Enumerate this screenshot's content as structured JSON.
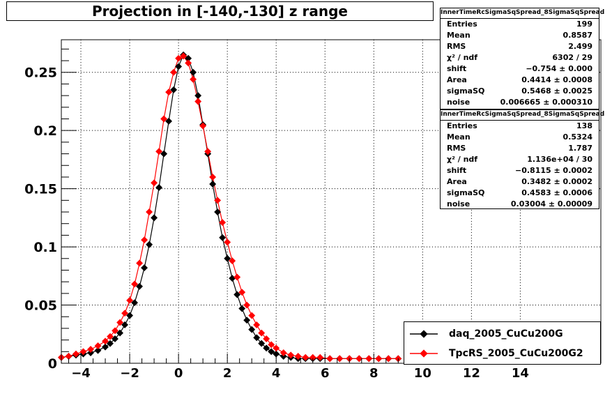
{
  "title": "Projection in [-140,-130] z range",
  "stats": [
    {
      "name": "InnerTimeRcSigmaSqSpread_8SigmaSqSpread",
      "rows": [
        {
          "k": "Entries",
          "v": "199"
        },
        {
          "k": "Mean",
          "v": "0.8587"
        },
        {
          "k": "RMS",
          "v": "2.499"
        },
        {
          "k": "χ² / ndf",
          "v": "6302 / 29"
        },
        {
          "k": "shift",
          "v": "−0.754 ± 0.000"
        },
        {
          "k": "Area",
          "v": "0.4414 ± 0.0008"
        },
        {
          "k": "sigmaSQ",
          "v": "0.5468 ± 0.0025"
        },
        {
          "k": "noise",
          "v": "0.006665 ± 0.000310"
        }
      ]
    },
    {
      "name": "InnerTimeRcSigmaSqSpread_8SigmaSqSpread",
      "rows": [
        {
          "k": "Entries",
          "v": "138"
        },
        {
          "k": "Mean",
          "v": "0.5324"
        },
        {
          "k": "RMS",
          "v": "1.787"
        },
        {
          "k": "χ² / ndf",
          "v": "1.136e+04 / 30"
        },
        {
          "k": "shift",
          "v": "−0.8115 ± 0.0002"
        },
        {
          "k": "Area",
          "v": "0.3482 ± 0.0002"
        },
        {
          "k": "sigmaSQ",
          "v": "0.4583 ± 0.0006"
        },
        {
          "k": "noise",
          "v": "0.03004 ± 0.00009"
        }
      ]
    }
  ],
  "legend": [
    {
      "label": "daq_2005_CuCu200G",
      "color": "#000000"
    },
    {
      "label": "TpcRS_2005_CuCu200G2",
      "color": "#ff0000"
    }
  ],
  "chart_data": {
    "type": "scatter",
    "title": "Projection in [-140,-130] z range",
    "xlabel": "",
    "ylabel": "",
    "xlim": [
      -4.8,
      17.3
    ],
    "ylim": [
      0,
      0.278
    ],
    "x_ticks": [
      -4,
      -2,
      0,
      2,
      4,
      6,
      8,
      10,
      12,
      14
    ],
    "y_ticks": [
      {
        "v": 0,
        "label": "0"
      },
      {
        "v": 0.05,
        "label": "0.05"
      },
      {
        "v": 0.1,
        "label": "0.1"
      },
      {
        "v": 0.15,
        "label": "0.15"
      },
      {
        "v": 0.2,
        "label": "0.2"
      },
      {
        "v": 0.25,
        "label": "0.25"
      }
    ],
    "grid": true,
    "legend_position": "bottom-right",
    "series": [
      {
        "name": "daq_2005_CuCu200G",
        "color": "#000000",
        "x": [
          -4.8,
          -4.5,
          -4.2,
          -3.9,
          -3.6,
          -3.3,
          -3.0,
          -2.8,
          -2.6,
          -2.4,
          -2.2,
          -2.0,
          -1.8,
          -1.6,
          -1.4,
          -1.2,
          -1.0,
          -0.8,
          -0.6,
          -0.4,
          -0.2,
          0.0,
          0.2,
          0.4,
          0.6,
          0.8,
          1.0,
          1.2,
          1.4,
          1.6,
          1.8,
          2.0,
          2.2,
          2.4,
          2.6,
          2.8,
          3.0,
          3.2,
          3.4,
          3.6,
          3.8,
          4.0,
          4.3,
          4.6,
          4.9,
          5.2,
          5.5,
          5.8,
          6.2,
          6.6,
          7.0,
          7.4,
          7.8,
          8.2,
          8.6,
          9.0
        ],
        "y": [
          0.005,
          0.006,
          0.007,
          0.008,
          0.009,
          0.011,
          0.014,
          0.017,
          0.021,
          0.026,
          0.033,
          0.041,
          0.052,
          0.066,
          0.082,
          0.102,
          0.125,
          0.151,
          0.18,
          0.208,
          0.235,
          0.255,
          0.265,
          0.262,
          0.25,
          0.23,
          0.205,
          0.18,
          0.154,
          0.13,
          0.108,
          0.09,
          0.073,
          0.059,
          0.047,
          0.037,
          0.029,
          0.022,
          0.017,
          0.013,
          0.01,
          0.008,
          0.006,
          0.005,
          0.004,
          0.004,
          0.004,
          0.004,
          0.004,
          0.004,
          0.004,
          0.004,
          0.004,
          0.004,
          0.004,
          0.004
        ]
      },
      {
        "name": "TpcRS_2005_CuCu200G2",
        "color": "#ff0000",
        "x": [
          -4.8,
          -4.5,
          -4.2,
          -3.9,
          -3.6,
          -3.3,
          -3.0,
          -2.8,
          -2.6,
          -2.4,
          -2.2,
          -2.0,
          -1.8,
          -1.6,
          -1.4,
          -1.2,
          -1.0,
          -0.8,
          -0.6,
          -0.4,
          -0.2,
          0.0,
          0.2,
          0.4,
          0.6,
          0.8,
          1.0,
          1.2,
          1.4,
          1.6,
          1.8,
          2.0,
          2.2,
          2.4,
          2.6,
          2.8,
          3.0,
          3.2,
          3.4,
          3.6,
          3.8,
          4.0,
          4.3,
          4.6,
          4.9,
          5.2,
          5.5,
          5.8,
          6.2,
          6.6,
          7.0,
          7.4,
          7.8,
          8.2,
          8.6,
          9.0
        ],
        "y": [
          0.005,
          0.006,
          0.008,
          0.01,
          0.012,
          0.015,
          0.019,
          0.023,
          0.028,
          0.035,
          0.043,
          0.054,
          0.068,
          0.086,
          0.106,
          0.13,
          0.155,
          0.182,
          0.21,
          0.233,
          0.25,
          0.262,
          0.264,
          0.258,
          0.244,
          0.225,
          0.204,
          0.182,
          0.16,
          0.14,
          0.121,
          0.104,
          0.088,
          0.074,
          0.061,
          0.05,
          0.041,
          0.033,
          0.026,
          0.021,
          0.016,
          0.013,
          0.009,
          0.007,
          0.006,
          0.005,
          0.005,
          0.005,
          0.004,
          0.004,
          0.004,
          0.004,
          0.004,
          0.004,
          0.004,
          0.004
        ]
      }
    ]
  }
}
